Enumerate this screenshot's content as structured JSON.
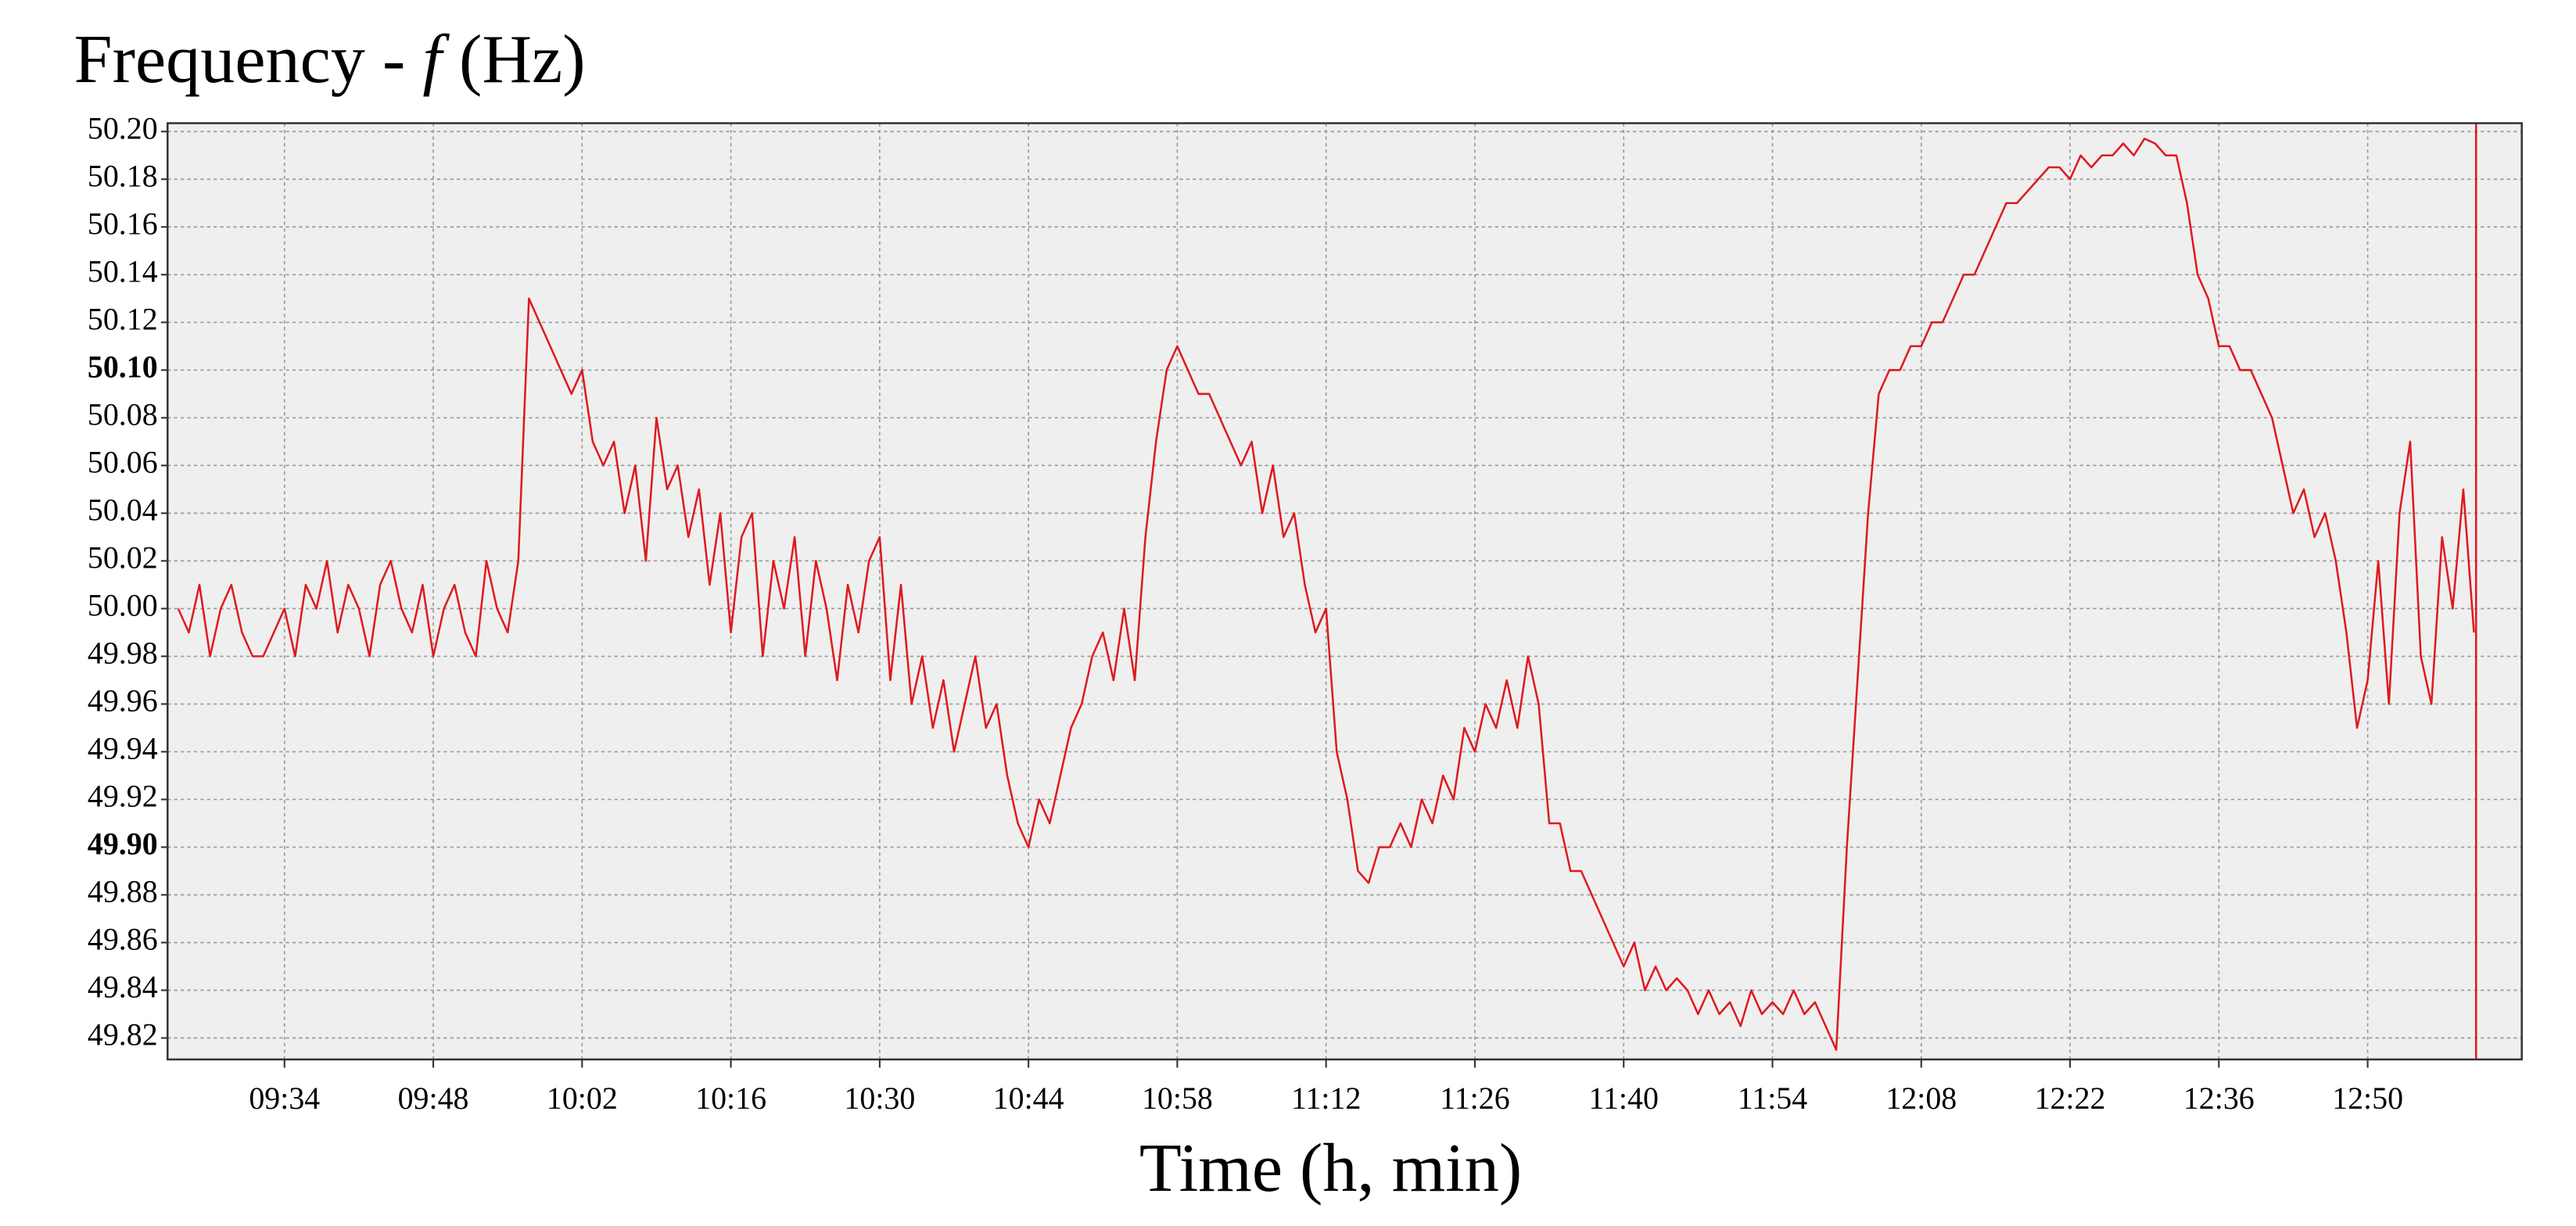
{
  "chart_data": {
    "type": "line",
    "title": {
      "text": "Frequency -",
      "symbol": "f",
      "unit": "(Hz)"
    },
    "x_label": "Time (h, min)",
    "color": "#e0191e",
    "grid": true,
    "xlim": [
      563,
      784.5
    ],
    "ylim": [
      49.811,
      50.2035
    ],
    "xticks": [
      {
        "value": 574,
        "label": "09:34"
      },
      {
        "value": 588,
        "label": "09:48"
      },
      {
        "value": 602,
        "label": "10:02"
      },
      {
        "value": 616,
        "label": "10:16"
      },
      {
        "value": 630,
        "label": "10:30"
      },
      {
        "value": 644,
        "label": "10:44"
      },
      {
        "value": 658,
        "label": "10:58"
      },
      {
        "value": 672,
        "label": "11:12"
      },
      {
        "value": 686,
        "label": "11:26"
      },
      {
        "value": 700,
        "label": "11:40"
      },
      {
        "value": 714,
        "label": "11:54"
      },
      {
        "value": 728,
        "label": "12:08"
      },
      {
        "value": 742,
        "label": "12:22"
      },
      {
        "value": 756,
        "label": "12:36"
      },
      {
        "value": 770,
        "label": "12:50"
      }
    ],
    "yticks": [
      {
        "value": 50.2,
        "label": "50.20"
      },
      {
        "value": 50.18,
        "label": "50.18"
      },
      {
        "value": 50.16,
        "label": "50.16"
      },
      {
        "value": 50.14,
        "label": "50.14"
      },
      {
        "value": 50.12,
        "label": "50.12"
      },
      {
        "value": 50.1,
        "label": "50.10",
        "bold": true
      },
      {
        "value": 50.08,
        "label": "50.08"
      },
      {
        "value": 50.06,
        "label": "50.06"
      },
      {
        "value": 50.04,
        "label": "50.04"
      },
      {
        "value": 50.02,
        "label": "50.02"
      },
      {
        "value": 50.0,
        "label": "50.00"
      },
      {
        "value": 49.98,
        "label": "49.98"
      },
      {
        "value": 49.96,
        "label": "49.96"
      },
      {
        "value": 49.94,
        "label": "49.94"
      },
      {
        "value": 49.92,
        "label": "49.92"
      },
      {
        "value": 49.9,
        "label": "49.90",
        "bold": true
      },
      {
        "value": 49.88,
        "label": "49.88"
      },
      {
        "value": 49.86,
        "label": "49.86"
      },
      {
        "value": 49.84,
        "label": "49.84"
      },
      {
        "value": 49.82,
        "label": "49.82"
      }
    ],
    "cursor_x": 780.2,
    "x": [
      564,
      565,
      566,
      567,
      568,
      569,
      570,
      571,
      572,
      573,
      574,
      575,
      576,
      577,
      578,
      579,
      580,
      581,
      582,
      583,
      584,
      585,
      586,
      587,
      588,
      589,
      590,
      591,
      592,
      593,
      594,
      595,
      596,
      597,
      598,
      599,
      600,
      601,
      602,
      603,
      604,
      605,
      606,
      607,
      608,
      609,
      610,
      611,
      612,
      613,
      614,
      615,
      616,
      617,
      618,
      619,
      620,
      621,
      622,
      623,
      624,
      625,
      626,
      627,
      628,
      629,
      630,
      631,
      632,
      633,
      634,
      635,
      636,
      637,
      638,
      639,
      640,
      641,
      642,
      643,
      644,
      645,
      646,
      647,
      648,
      649,
      650,
      651,
      652,
      653,
      654,
      655,
      656,
      657,
      658,
      659,
      660,
      661,
      662,
      663,
      664,
      665,
      666,
      667,
      668,
      669,
      670,
      671,
      672,
      673,
      674,
      675,
      676,
      677,
      678,
      679,
      680,
      681,
      682,
      683,
      684,
      685,
      686,
      687,
      688,
      689,
      690,
      691,
      692,
      693,
      694,
      695,
      696,
      697,
      698,
      699,
      700,
      701,
      702,
      703,
      704,
      705,
      706,
      707,
      708,
      709,
      710,
      711,
      712,
      713,
      714,
      715,
      716,
      717,
      718,
      719,
      720,
      721,
      722,
      723,
      724,
      725,
      726,
      727,
      728,
      729,
      730,
      731,
      732,
      733,
      734,
      735,
      736,
      737,
      738,
      739,
      740,
      741,
      742,
      743,
      744,
      745,
      746,
      747,
      748,
      749,
      750,
      751,
      752,
      753,
      754,
      755,
      756,
      757,
      758,
      759,
      760,
      761,
      762,
      763,
      764,
      765,
      766,
      767,
      768,
      769,
      770,
      771,
      772,
      773,
      774,
      775,
      776,
      777,
      778,
      779,
      780
    ],
    "values": [
      50.0,
      49.99,
      50.01,
      49.98,
      50.0,
      50.01,
      49.99,
      49.98,
      49.98,
      49.99,
      50.0,
      49.98,
      50.01,
      50.0,
      50.02,
      49.99,
      50.01,
      50.0,
      49.98,
      50.01,
      50.02,
      50.0,
      49.99,
      50.01,
      49.98,
      50.0,
      50.01,
      49.99,
      49.98,
      50.02,
      50.0,
      49.99,
      50.02,
      50.13,
      50.12,
      50.11,
      50.1,
      50.09,
      50.1,
      50.07,
      50.06,
      50.07,
      50.04,
      50.06,
      50.02,
      50.08,
      50.05,
      50.06,
      50.03,
      50.05,
      50.01,
      50.04,
      49.99,
      50.03,
      50.04,
      49.98,
      50.02,
      50.0,
      50.03,
      49.98,
      50.02,
      50.0,
      49.97,
      50.01,
      49.99,
      50.02,
      50.03,
      49.97,
      50.01,
      49.96,
      49.98,
      49.95,
      49.97,
      49.94,
      49.96,
      49.98,
      49.95,
      49.96,
      49.93,
      49.91,
      49.9,
      49.92,
      49.91,
      49.93,
      49.95,
      49.96,
      49.98,
      49.99,
      49.97,
      50.0,
      49.97,
      50.03,
      50.07,
      50.1,
      50.11,
      50.1,
      50.09,
      50.09,
      50.08,
      50.07,
      50.06,
      50.07,
      50.04,
      50.06,
      50.03,
      50.04,
      50.01,
      49.99,
      50.0,
      49.94,
      49.92,
      49.89,
      49.885,
      49.9,
      49.9,
      49.91,
      49.9,
      49.92,
      49.91,
      49.93,
      49.92,
      49.95,
      49.94,
      49.96,
      49.95,
      49.97,
      49.95,
      49.98,
      49.96,
      49.91,
      49.91,
      49.89,
      49.89,
      49.88,
      49.87,
      49.86,
      49.85,
      49.86,
      49.84,
      49.85,
      49.84,
      49.845,
      49.84,
      49.83,
      49.84,
      49.83,
      49.835,
      49.825,
      49.84,
      49.83,
      49.835,
      49.83,
      49.84,
      49.83,
      49.835,
      49.825,
      49.815,
      49.9,
      49.97,
      50.04,
      50.09,
      50.1,
      50.1,
      50.11,
      50.11,
      50.12,
      50.12,
      50.13,
      50.14,
      50.14,
      50.15,
      50.16,
      50.17,
      50.17,
      50.175,
      50.18,
      50.185,
      50.185,
      50.18,
      50.19,
      50.185,
      50.19,
      50.19,
      50.195,
      50.19,
      50.197,
      50.195,
      50.19,
      50.19,
      50.17,
      50.14,
      50.13,
      50.11,
      50.11,
      50.1,
      50.1,
      50.09,
      50.08,
      50.06,
      50.04,
      50.05,
      50.03,
      50.04,
      50.02,
      49.99,
      49.95,
      49.97,
      50.02,
      49.96,
      50.04,
      50.07,
      49.98,
      49.96,
      50.03,
      50.0,
      50.05,
      49.99
    ]
  }
}
